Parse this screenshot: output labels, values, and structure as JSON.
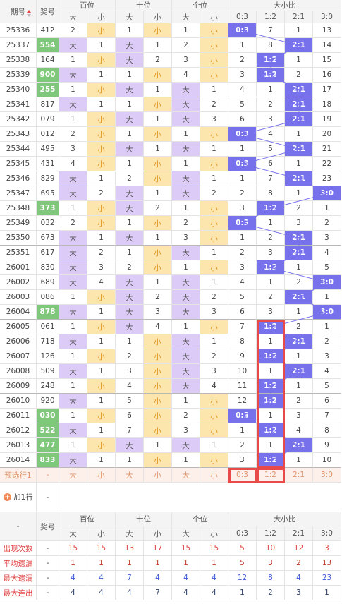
{
  "header": {
    "issue": "期号",
    "number": "奖号",
    "groups": [
      "百位",
      "十位",
      "个位",
      "大小比"
    ],
    "subcols": [
      "大",
      "小",
      "大",
      "小",
      "大",
      "小",
      "0:3",
      "1:2",
      "2:1",
      "3:0"
    ]
  },
  "rows": [
    {
      "issue": "25336",
      "number": "412",
      "cells": [
        2,
        "小",
        1,
        "小",
        1,
        "小",
        "0:3",
        7,
        1,
        13
      ]
    },
    {
      "issue": "25337",
      "number": "554",
      "cells": [
        "大",
        1,
        "大",
        1,
        2,
        "小",
        1,
        8,
        "2:1",
        14
      ]
    },
    {
      "issue": "25338",
      "number": "164",
      "cells": [
        1,
        "小",
        "大",
        2,
        3,
        "小",
        2,
        "1:2",
        1,
        15
      ]
    },
    {
      "issue": "25339",
      "number": "900",
      "cells": [
        "大",
        1,
        1,
        "小",
        4,
        "小",
        3,
        "1:2",
        2,
        16
      ]
    },
    {
      "issue": "25340",
      "number": "255",
      "cells": [
        1,
        "小",
        "大",
        1,
        "大",
        1,
        4,
        1,
        "2:1",
        17
      ]
    },
    {
      "issue": "25341",
      "number": "817",
      "cells": [
        "大",
        1,
        1,
        "小",
        "大",
        2,
        5,
        2,
        "2:1",
        18
      ]
    },
    {
      "issue": "25342",
      "number": "079",
      "cells": [
        1,
        "小",
        "大",
        1,
        "大",
        3,
        6,
        3,
        "2:1",
        19
      ]
    },
    {
      "issue": "25343",
      "number": "012",
      "cells": [
        2,
        "小",
        1,
        "小",
        1,
        "小",
        "0:3",
        4,
        1,
        20
      ]
    },
    {
      "issue": "25344",
      "number": "495",
      "cells": [
        3,
        "小",
        "大",
        1,
        "大",
        1,
        1,
        5,
        "2:1",
        21
      ]
    },
    {
      "issue": "25345",
      "number": "431",
      "cells": [
        4,
        "小",
        1,
        "小",
        1,
        "小",
        "0:3",
        6,
        1,
        22
      ]
    },
    {
      "issue": "25346",
      "number": "829",
      "cells": [
        "大",
        1,
        2,
        "小",
        "大",
        1,
        1,
        7,
        "2:1",
        23
      ]
    },
    {
      "issue": "25347",
      "number": "695",
      "cells": [
        "大",
        2,
        "大",
        1,
        "大",
        2,
        2,
        8,
        1,
        "3:0"
      ]
    },
    {
      "issue": "25348",
      "number": "373",
      "cells": [
        1,
        "小",
        "大",
        2,
        1,
        "小",
        3,
        "1:2",
        2,
        1
      ]
    },
    {
      "issue": "25349",
      "number": "032",
      "cells": [
        2,
        "小",
        1,
        "小",
        2,
        "小",
        "0:3",
        1,
        3,
        2
      ]
    },
    {
      "issue": "25350",
      "number": "673",
      "cells": [
        "大",
        1,
        "大",
        1,
        3,
        "小",
        1,
        2,
        "2:1",
        3
      ]
    },
    {
      "issue": "25351",
      "number": "617",
      "cells": [
        "大",
        2,
        1,
        "小",
        "大",
        1,
        2,
        3,
        "2:1",
        4
      ]
    },
    {
      "issue": "26001",
      "number": "830",
      "cells": [
        "大",
        3,
        2,
        "小",
        1,
        "小",
        3,
        "1:2",
        1,
        5
      ]
    },
    {
      "issue": "26002",
      "number": "689",
      "cells": [
        "大",
        4,
        "大",
        1,
        "大",
        1,
        4,
        1,
        2,
        "3:0"
      ]
    },
    {
      "issue": "26003",
      "number": "086",
      "cells": [
        1,
        "小",
        "大",
        2,
        "大",
        2,
        5,
        2,
        "2:1",
        1
      ]
    },
    {
      "issue": "26004",
      "number": "878",
      "cells": [
        "大",
        1,
        "大",
        3,
        "大",
        3,
        6,
        3,
        1,
        "3:0"
      ]
    },
    {
      "issue": "26005",
      "number": "061",
      "cells": [
        1,
        "小",
        "大",
        4,
        1,
        "小",
        7,
        "1:2",
        2,
        1
      ]
    },
    {
      "issue": "26006",
      "number": "718",
      "cells": [
        "大",
        1,
        1,
        "小",
        "大",
        1,
        8,
        1,
        "2:1",
        2
      ]
    },
    {
      "issue": "26007",
      "number": "126",
      "cells": [
        1,
        "小",
        2,
        "小",
        "大",
        2,
        9,
        "1:2",
        1,
        3
      ]
    },
    {
      "issue": "26008",
      "number": "509",
      "cells": [
        "大",
        1,
        3,
        "小",
        "大",
        3,
        10,
        1,
        "2:1",
        4
      ]
    },
    {
      "issue": "26009",
      "number": "248",
      "cells": [
        1,
        "小",
        4,
        "小",
        "大",
        4,
        11,
        "1:2",
        1,
        5
      ]
    },
    {
      "issue": "26010",
      "number": "920",
      "cells": [
        "大",
        1,
        5,
        "小",
        1,
        "小",
        12,
        "1:2",
        2,
        6
      ]
    },
    {
      "issue": "26011",
      "number": "030",
      "cells": [
        1,
        "小",
        6,
        "小",
        2,
        "小",
        "0:3",
        1,
        3,
        7
      ]
    },
    {
      "issue": "26012",
      "number": "522",
      "cells": [
        "大",
        1,
        7,
        "小",
        3,
        "小",
        1,
        "1:2",
        4,
        8
      ]
    },
    {
      "issue": "26013",
      "number": "477",
      "cells": [
        1,
        "小",
        "大",
        1,
        "大",
        1,
        2,
        1,
        "2:1",
        9
      ]
    },
    {
      "issue": "26014",
      "number": "833",
      "cells": [
        "大",
        1,
        1,
        "小",
        1,
        "小",
        3,
        "1:2",
        1,
        10
      ]
    }
  ],
  "highlighted_numbers": [
    1,
    3,
    4,
    12,
    19,
    26,
    27,
    28,
    29
  ],
  "preselect": {
    "label": "预选行1",
    "number": "-",
    "cells": [
      "大",
      "小",
      "大",
      "小",
      "大",
      "小",
      "0:3",
      "1:2",
      "2:1",
      "3:0"
    ]
  },
  "add_row": {
    "label": "加1行",
    "value": "-"
  },
  "stats_header": {
    "corner": "-",
    "number": "奖号",
    "groups": [
      "百位",
      "十位",
      "个位",
      "大小比"
    ],
    "subcols": [
      "大",
      "小",
      "大",
      "小",
      "大",
      "小",
      "0:3",
      "1:2",
      "2:1",
      "3:0"
    ]
  },
  "stats": [
    {
      "label": "出现次数",
      "number": "-",
      "values": [
        15,
        15,
        13,
        17,
        15,
        15,
        5,
        10,
        12,
        3
      ]
    },
    {
      "label": "平均遗漏",
      "number": "-",
      "values": [
        1,
        1,
        1,
        1,
        1,
        1,
        5,
        3,
        2,
        13
      ]
    },
    {
      "label": "最大遗漏",
      "number": "-",
      "values": [
        4,
        4,
        7,
        4,
        4,
        4,
        12,
        8,
        4,
        23
      ]
    },
    {
      "label": "最大连出",
      "number": "-",
      "values": [
        4,
        4,
        4,
        7,
        4,
        4,
        1,
        2,
        3,
        1
      ]
    }
  ]
}
